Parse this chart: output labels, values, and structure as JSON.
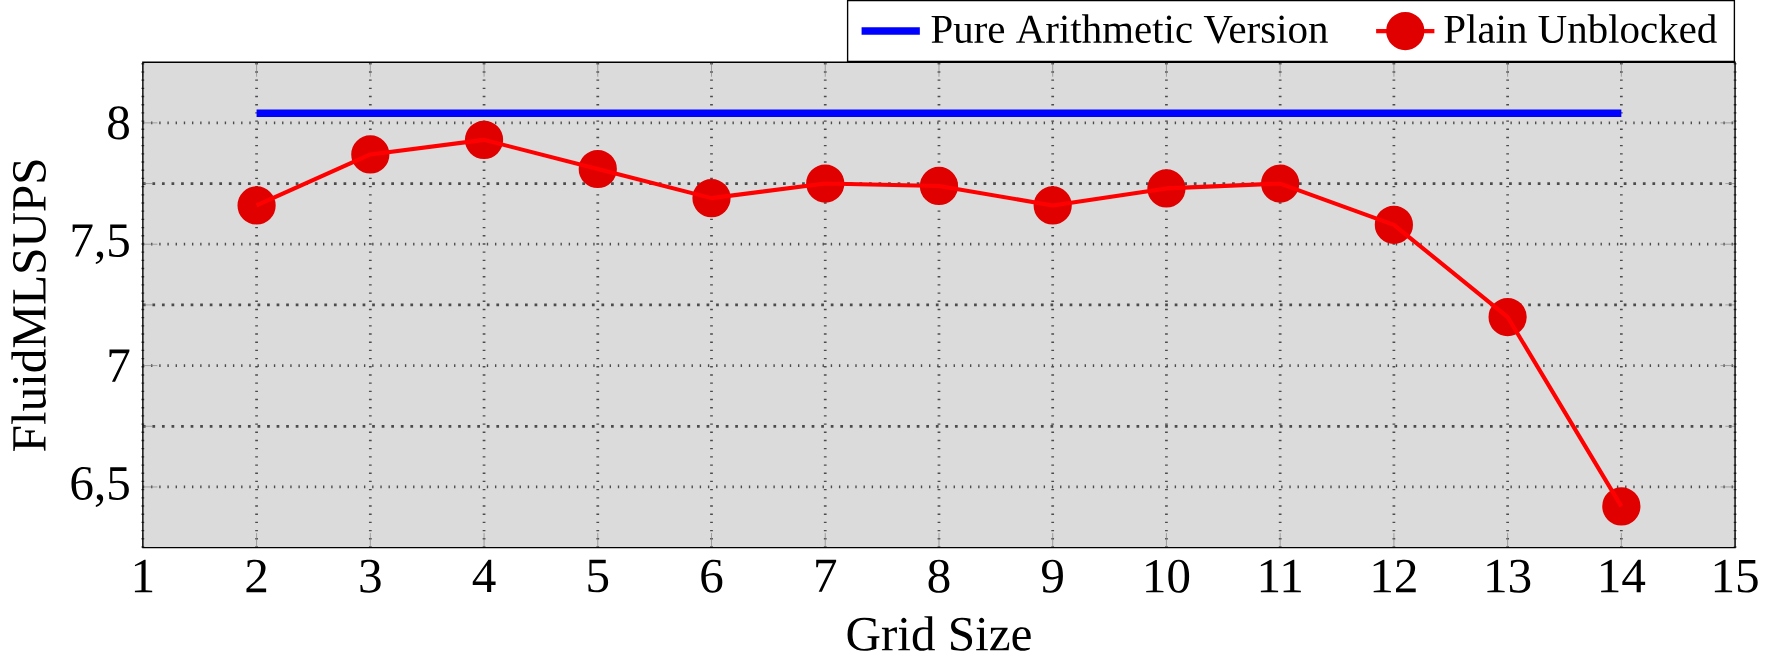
{
  "chart_data": {
    "type": "line",
    "xlabel": "Grid Size",
    "ylabel": "FluidMLSUPS",
    "xlim": [
      1,
      15
    ],
    "xticks": [
      1,
      2,
      3,
      4,
      5,
      6,
      7,
      8,
      9,
      10,
      11,
      12,
      13,
      14,
      15
    ],
    "ylim": [
      6.25,
      8.25
    ],
    "yticks": [
      {
        "value": 6.5,
        "label": "6,5"
      },
      7,
      {
        "value": 7.5,
        "label": "7,5"
      },
      8
    ],
    "grid": true,
    "legend": "top right",
    "series": [
      {
        "name": "Pure Arithmetic Version",
        "color": "#0000ff",
        "x": [
          2,
          14
        ],
        "values": [
          8.04,
          8.04
        ],
        "marker": "none"
      },
      {
        "name": "Plain Unblocked",
        "color": "#ff0000",
        "x": [
          2,
          3,
          4,
          5,
          6,
          7,
          8,
          9,
          10,
          11,
          12,
          13,
          14
        ],
        "values": [
          7.66,
          7.87,
          7.93,
          7.81,
          7.69,
          7.75,
          7.74,
          7.66,
          7.73,
          7.75,
          7.58,
          7.2,
          6.42
        ],
        "marker": "circle"
      }
    ]
  }
}
